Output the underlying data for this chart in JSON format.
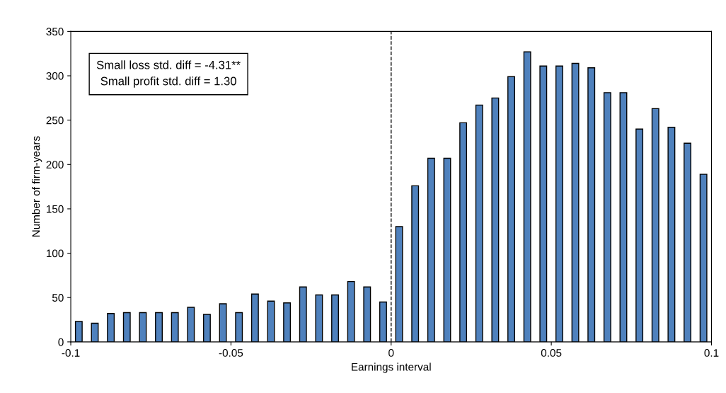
{
  "chart_data": {
    "type": "histogram",
    "xlabel": "Earnings interval",
    "ylabel": "Number of firm-years",
    "bins": [
      -0.1,
      -0.095,
      -0.09,
      -0.085,
      -0.08,
      -0.075,
      -0.07,
      -0.065,
      -0.06,
      -0.055,
      -0.05,
      -0.045,
      -0.04,
      -0.035,
      -0.03,
      -0.025,
      -0.02,
      -0.015,
      -0.01,
      -0.005,
      0,
      0.005,
      0.01,
      0.015,
      0.02,
      0.025,
      0.03,
      0.035,
      0.04,
      0.045,
      0.05,
      0.055,
      0.06,
      0.065,
      0.07,
      0.075,
      0.08,
      0.085,
      0.09,
      0.095,
      0.1
    ],
    "values": [
      23,
      21,
      32,
      33,
      33,
      33,
      33,
      39,
      31,
      43,
      33,
      54,
      46,
      44,
      62,
      53,
      53,
      68,
      62,
      45,
      130,
      176,
      207,
      207,
      247,
      267,
      275,
      299,
      327,
      311,
      311,
      314,
      309,
      281,
      281,
      240,
      263,
      242,
      224,
      189
    ],
    "color": "#4f81bd",
    "xlim": [
      -0.1,
      0.1
    ],
    "xticks": [
      -0.1,
      -0.05,
      0,
      0.05,
      0.1
    ],
    "ylim": [
      0,
      350
    ],
    "yticks": [
      0,
      50,
      100,
      150,
      200,
      250,
      300,
      350
    ],
    "ref_lines": [
      {
        "axis": "x",
        "value": 0,
        "color": "#000000",
        "line_style": "dashed"
      }
    ],
    "annotations": [
      "Small loss std. diff = -4.31**",
      "Small profit std. diff = 1.30"
    ],
    "grid": false,
    "legend": false
  }
}
